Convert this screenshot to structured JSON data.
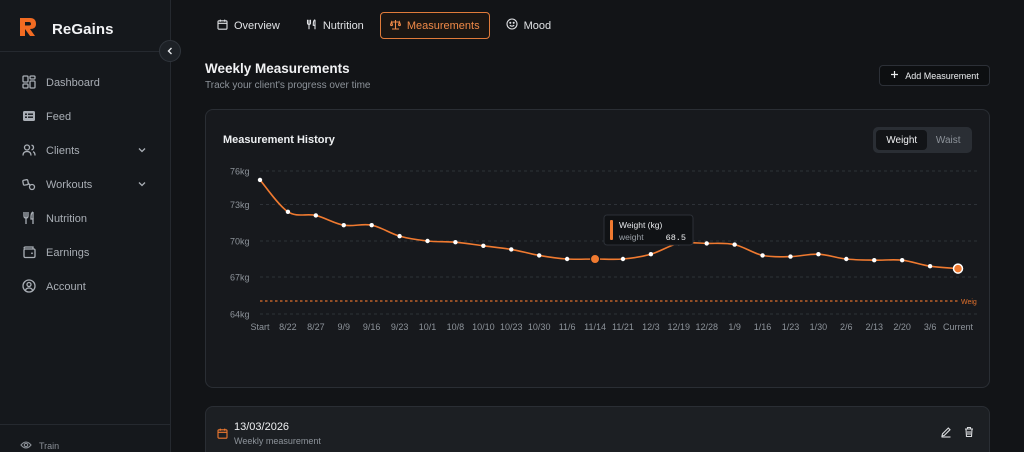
{
  "app": {
    "name": "ReGains",
    "brand_color": "#f26b22"
  },
  "sidebar": {
    "items": [
      {
        "label": "Dashboard",
        "icon": "dashboard-icon"
      },
      {
        "label": "Feed",
        "icon": "feed-icon"
      },
      {
        "label": "Clients",
        "icon": "users-icon",
        "expandable": true
      },
      {
        "label": "Workouts",
        "icon": "dumbbell-icon",
        "expandable": true
      },
      {
        "label": "Nutrition",
        "icon": "utensils-icon"
      },
      {
        "label": "Earnings",
        "icon": "wallet-icon"
      },
      {
        "label": "Account",
        "icon": "user-circle-icon"
      }
    ],
    "bottom_label": "Train"
  },
  "tabs": [
    {
      "label": "Overview",
      "icon": "calendar-icon",
      "active": false
    },
    {
      "label": "Nutrition",
      "icon": "utensils-icon",
      "active": false
    },
    {
      "label": "Measurements",
      "icon": "scale-icon",
      "active": true
    },
    {
      "label": "Mood",
      "icon": "smile-icon",
      "active": false
    }
  ],
  "header": {
    "title": "Weekly Measurements",
    "subtitle": "Track your client's progress over time",
    "add_label": "Add Measurement"
  },
  "chart_card": {
    "title": "Measurement History",
    "toggle": {
      "selected": "Weight",
      "other": "Waist"
    },
    "tooltip": {
      "title": "Weight (kg)",
      "label": "weight",
      "value": "68.5"
    },
    "goal_label": "Weig"
  },
  "chart_data": {
    "type": "line",
    "y_tick_labels": [
      "76kg",
      "73kg",
      "70kg",
      "67kg",
      "64kg"
    ],
    "y_tick_values": [
      76,
      73,
      70,
      67,
      64
    ],
    "ylim": [
      64,
      76
    ],
    "categories": [
      "Start",
      "8/22",
      "8/27",
      "9/9",
      "9/16",
      "9/23",
      "10/1",
      "10/8",
      "10/10",
      "10/23",
      "10/30",
      "11/6",
      "11/14",
      "11/21",
      "12/3",
      "12/19",
      "12/28",
      "1/9",
      "1/16",
      "1/23",
      "1/30",
      "2/6",
      "2/13",
      "2/20",
      "3/6",
      "Current"
    ],
    "series": [
      {
        "values": [
          75.2,
          72.4,
          72.1,
          71.3,
          71.3,
          70.4,
          70.0,
          69.9,
          69.6,
          69.3,
          68.8,
          68.5,
          68.5,
          68.5,
          68.9,
          69.8,
          69.8,
          69.7,
          68.8,
          68.7,
          68.9,
          68.5,
          68.4,
          68.4,
          67.9,
          67.7
        ],
        "color": "#f07a30"
      }
    ],
    "goal_line": 65.0,
    "highlight_index": 12,
    "grid": true
  },
  "entry": {
    "date": "13/03/2026",
    "subtitle": "Weekly measurement"
  }
}
